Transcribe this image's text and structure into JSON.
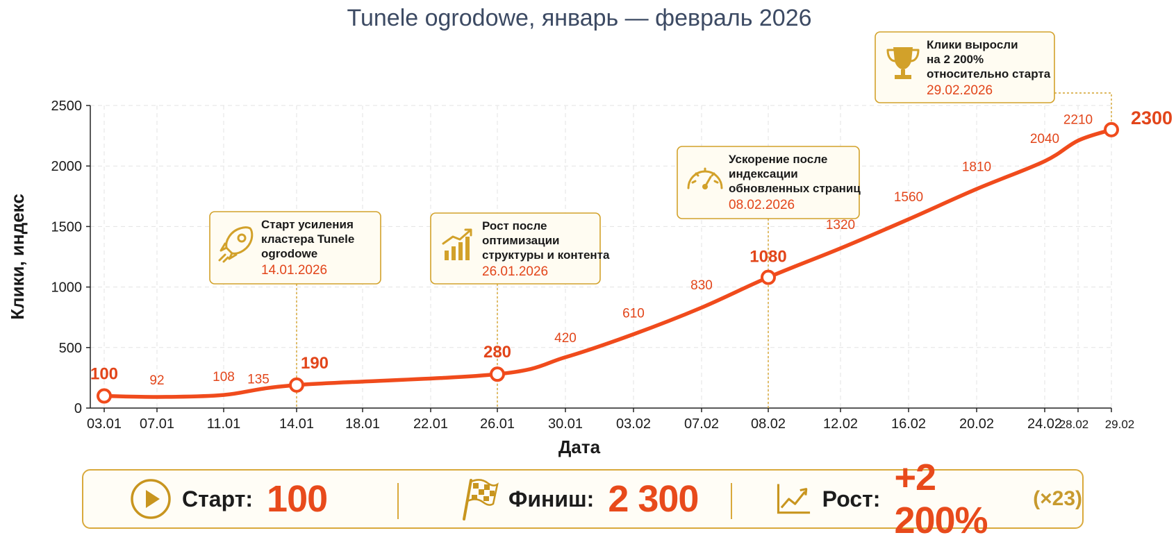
{
  "chart_data": {
    "type": "line",
    "title": "Tunele ogrodowe, январь — февраль 2026",
    "xlabel": "Дата",
    "ylabel": "Клики, индекс",
    "ylim": [
      0,
      2500
    ],
    "yticks": [
      "0",
      "500",
      "1000",
      "1500",
      "2000",
      "2500"
    ],
    "xticks": [
      "03.01",
      "07.01",
      "11.01",
      "14.01",
      "18.01",
      "22.01",
      "26.01",
      "30.01",
      "03.02",
      "07.02",
      "08.02",
      "12.02",
      "16.02",
      "20.02",
      "24.02",
      "28.02",
      "29.02"
    ],
    "grid": true,
    "color": "#f04b1c",
    "series": [
      {
        "points": [
          {
            "x": "03.01",
            "y": 100,
            "label": "100",
            "marker": true
          },
          {
            "x": "07.01",
            "y": 92,
            "label": "92"
          },
          {
            "x": "11.01",
            "y": 108,
            "label": "108"
          },
          {
            "x": "14.01",
            "y": 135,
            "label": "135"
          },
          {
            "x": "14.01",
            "y": 190,
            "label": "190",
            "marker": true
          },
          {
            "x": "26.01",
            "y": 280,
            "label": "280",
            "marker": true
          },
          {
            "x": "30.01",
            "y": 420,
            "label": "420"
          },
          {
            "x": "03.02",
            "y": 610,
            "label": "610"
          },
          {
            "x": "07.02",
            "y": 830,
            "label": "830"
          },
          {
            "x": "08.02",
            "y": 1080,
            "label": "1080",
            "marker": true
          },
          {
            "x": "12.02",
            "y": 1320,
            "label": "1320"
          },
          {
            "x": "16.02",
            "y": 1560,
            "label": "1560"
          },
          {
            "x": "20.02",
            "y": 1810,
            "label": "1810"
          },
          {
            "x": "24.02",
            "y": 2040,
            "label": "2040"
          },
          {
            "x": "28.02",
            "y": 2210,
            "label": "2210"
          },
          {
            "x": "29.02",
            "y": 2300,
            "label": "2300",
            "marker": true
          }
        ]
      }
    ],
    "annotations": [
      {
        "x": "14.01",
        "icon": "rocket-icon",
        "lines": [
          "Старт усиления",
          "кластера Tunele",
          "ogrodowe"
        ],
        "date": "14.01.2026"
      },
      {
        "x": "26.01",
        "icon": "bar-growth-icon",
        "lines": [
          "Рост после",
          "оптимизации",
          "структуры и контента"
        ],
        "date": "26.01.2026"
      },
      {
        "x": "08.02",
        "icon": "speedometer-icon",
        "lines": [
          "Ускорение после",
          "индексации",
          "обновленных страниц"
        ],
        "date": "08.02.2026"
      },
      {
        "x": "29.02",
        "icon": "trophy-icon",
        "lines": [
          "Клики выросли",
          "на 2 200%",
          "относительно старта"
        ],
        "date": "29.02.2026"
      }
    ]
  },
  "summary": {
    "start_label": "Старт:",
    "start_value": "100",
    "finish_label": "Финиш:",
    "finish_value": "2 300",
    "growth_label": "Рост:",
    "growth_value": "+2 200%",
    "growth_extra": "(×23)"
  }
}
